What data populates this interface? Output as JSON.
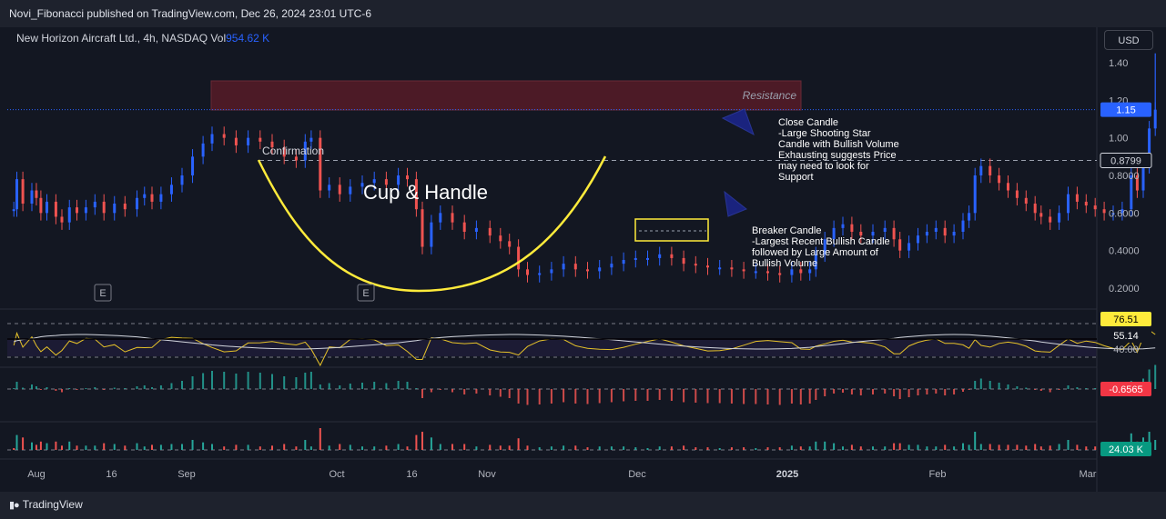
{
  "publisher": "Novi_Fibonacci published on TradingView.com, Dec 26, 2024 23:01 UTC-6",
  "symbol": {
    "name": "New Horizon Aircraft Ltd., 4h, NASDAQ",
    "vol_label": "Vol",
    "vol_value": "954.62 K"
  },
  "currency_button": "USD",
  "brand": "TradingView",
  "colors": {
    "background": "#131722",
    "up": "#2962ff",
    "down": "#ef5350",
    "annotation": "#ffeb3b",
    "zone": "#7b1e2b"
  },
  "chart_data": {
    "type": "candlestick",
    "price_axis": {
      "ticks": [
        "1.40",
        "1.20",
        "1.00",
        "0.8000",
        "0.6000",
        "0.4000",
        "0.2000"
      ],
      "ylim": [
        0.1,
        1.5
      ]
    },
    "time_axis": {
      "ticks": [
        "Aug",
        "16",
        "Sep",
        "Oct",
        "16",
        "Nov",
        "Dec",
        "2025",
        "Feb",
        "Mar"
      ]
    },
    "price_badges": {
      "last": "1.15",
      "level": "0.8799"
    },
    "close_path": [
      [
        0.88,
        0.62
      ],
      [
        0.9,
        0.78
      ],
      [
        0.94,
        0.65
      ],
      [
        1.0,
        0.72
      ],
      [
        1.03,
        0.68
      ],
      [
        1.06,
        0.6
      ],
      [
        1.1,
        0.66
      ],
      [
        1.16,
        0.58
      ],
      [
        1.2,
        0.55
      ],
      [
        1.25,
        0.63
      ],
      [
        1.3,
        0.6
      ],
      [
        1.36,
        0.63
      ],
      [
        1.42,
        0.66
      ],
      [
        1.48,
        0.6
      ],
      [
        1.55,
        0.65
      ],
      [
        1.62,
        0.62
      ],
      [
        1.7,
        0.68
      ],
      [
        1.75,
        0.7
      ],
      [
        1.8,
        0.66
      ],
      [
        1.86,
        0.7
      ],
      [
        1.93,
        0.75
      ],
      [
        2.0,
        0.8
      ],
      [
        2.07,
        0.9
      ],
      [
        2.14,
        0.97
      ],
      [
        2.2,
        1.02
      ],
      [
        2.28,
        1.0
      ],
      [
        2.36,
        0.96
      ],
      [
        2.44,
        1.0
      ],
      [
        2.52,
        0.98
      ],
      [
        2.6,
        0.95
      ],
      [
        2.68,
        0.9
      ],
      [
        2.76,
        0.88
      ],
      [
        2.82,
        0.98
      ],
      [
        2.86,
        1.0
      ],
      [
        2.92,
        0.72
      ],
      [
        2.98,
        0.75
      ],
      [
        3.05,
        0.7
      ],
      [
        3.12,
        0.74
      ],
      [
        3.2,
        0.76
      ],
      [
        3.28,
        0.78
      ],
      [
        3.36,
        0.75
      ],
      [
        3.44,
        0.8
      ],
      [
        3.5,
        0.78
      ],
      [
        3.56,
        0.62
      ],
      [
        3.6,
        0.42
      ],
      [
        3.66,
        0.55
      ],
      [
        3.72,
        0.6
      ],
      [
        3.8,
        0.55
      ],
      [
        3.88,
        0.5
      ],
      [
        3.96,
        0.52
      ],
      [
        4.05,
        0.48
      ],
      [
        4.12,
        0.45
      ],
      [
        4.18,
        0.42
      ],
      [
        4.24,
        0.3
      ],
      [
        4.3,
        0.27
      ],
      [
        4.38,
        0.28
      ],
      [
        4.46,
        0.3
      ],
      [
        4.54,
        0.33
      ],
      [
        4.62,
        0.3
      ],
      [
        4.7,
        0.29
      ],
      [
        4.78,
        0.31
      ],
      [
        4.86,
        0.33
      ],
      [
        4.94,
        0.35
      ],
      [
        5.02,
        0.36
      ],
      [
        5.1,
        0.36
      ],
      [
        5.18,
        0.38
      ],
      [
        5.26,
        0.36
      ],
      [
        5.34,
        0.33
      ],
      [
        5.42,
        0.32
      ],
      [
        5.5,
        0.31
      ],
      [
        5.58,
        0.31
      ],
      [
        5.66,
        0.3
      ],
      [
        5.74,
        0.29
      ],
      [
        5.82,
        0.29
      ],
      [
        5.9,
        0.28
      ],
      [
        5.98,
        0.27
      ],
      [
        6.06,
        0.3
      ],
      [
        6.12,
        0.28
      ],
      [
        6.18,
        0.3
      ],
      [
        6.22,
        0.38
      ],
      [
        6.28,
        0.46
      ],
      [
        6.34,
        0.52
      ],
      [
        6.4,
        0.54
      ],
      [
        6.46,
        0.5
      ],
      [
        6.52,
        0.48
      ],
      [
        6.6,
        0.5
      ],
      [
        6.68,
        0.52
      ],
      [
        6.74,
        0.46
      ],
      [
        6.78,
        0.4
      ],
      [
        6.84,
        0.44
      ],
      [
        6.9,
        0.48
      ],
      [
        6.96,
        0.5
      ],
      [
        7.02,
        0.52
      ],
      [
        7.08,
        0.48
      ],
      [
        7.14,
        0.5
      ],
      [
        7.2,
        0.56
      ],
      [
        7.24,
        0.6
      ],
      [
        7.28,
        0.8
      ],
      [
        7.32,
        0.85
      ],
      [
        7.38,
        0.8
      ],
      [
        7.44,
        0.76
      ],
      [
        7.5,
        0.72
      ],
      [
        7.56,
        0.68
      ],
      [
        7.62,
        0.65
      ],
      [
        7.68,
        0.6
      ],
      [
        7.72,
        0.58
      ],
      [
        7.78,
        0.55
      ],
      [
        7.84,
        0.6
      ],
      [
        7.9,
        0.7
      ],
      [
        7.96,
        0.66
      ],
      [
        8.02,
        0.64
      ],
      [
        8.08,
        0.62
      ],
      [
        8.14,
        0.6
      ],
      [
        8.2,
        0.6
      ],
      [
        8.26,
        0.62
      ],
      [
        8.32,
        0.8
      ],
      [
        8.36,
        0.72
      ],
      [
        8.4,
        0.85
      ],
      [
        8.44,
        1.05
      ],
      [
        8.48,
        1.15
      ]
    ],
    "indicators": [
      {
        "name": "oscillator",
        "badges": [
          "76.51",
          "55.14"
        ],
        "levels": [
          "40.00"
        ]
      },
      {
        "name": "momentum",
        "badges": [
          "-0.6565"
        ]
      },
      {
        "name": "volume",
        "badges": [
          "24.03 K"
        ]
      }
    ],
    "annotations": {
      "resistance": "Resistance",
      "confirmation": "Confirmation",
      "pattern": "Cup & Handle",
      "earnings_marker": "E",
      "close_candle": [
        "Close Candle",
        "-Large Shooting Star",
        "Candle with Bullish Volume",
        "Exhausting suggests Price",
        "may need to look for",
        "Support"
      ],
      "breaker_candle": [
        "Breaker Candle",
        "-Largest Recent Bullish Candle",
        "followed by Large Amount of",
        "Bullish Volume"
      ]
    }
  }
}
